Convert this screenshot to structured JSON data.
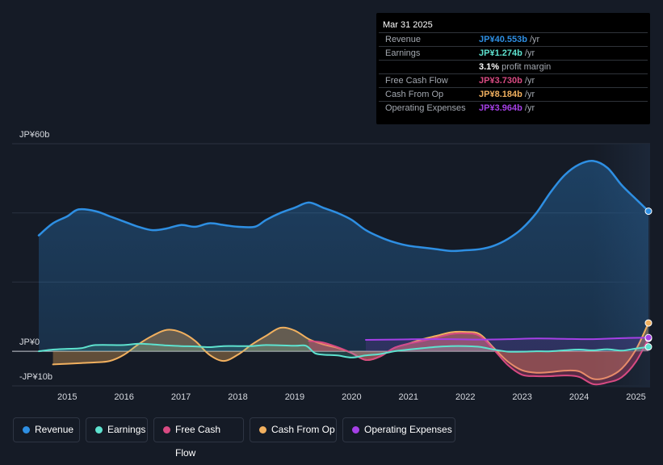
{
  "chart_data": {
    "type": "area",
    "title": "",
    "y_unit_labels": {
      "top": "JP¥60b",
      "zero": "JP¥0",
      "bottom": "-JP¥10b"
    },
    "ylim": [
      -10,
      60
    ],
    "x_ticks": [
      "2015",
      "2016",
      "2017",
      "2018",
      "2019",
      "2020",
      "2021",
      "2022",
      "2023",
      "2024",
      "2025"
    ],
    "series": [
      {
        "name": "Revenue",
        "color": "#2e8fe3",
        "points": [
          [
            2014.5,
            33.5
          ],
          [
            2014.75,
            37
          ],
          [
            2015.0,
            39
          ],
          [
            2015.2,
            41
          ],
          [
            2015.5,
            40.5
          ],
          [
            2015.75,
            39
          ],
          [
            2016.0,
            37.5
          ],
          [
            2016.25,
            36
          ],
          [
            2016.5,
            35
          ],
          [
            2016.75,
            35.5
          ],
          [
            2017.0,
            36.5
          ],
          [
            2017.25,
            36
          ],
          [
            2017.5,
            37
          ],
          [
            2017.75,
            36.5
          ],
          [
            2018.0,
            36
          ],
          [
            2018.3,
            36
          ],
          [
            2018.5,
            38
          ],
          [
            2018.75,
            40
          ],
          [
            2019.0,
            41.5
          ],
          [
            2019.25,
            43
          ],
          [
            2019.5,
            41.5
          ],
          [
            2019.75,
            40
          ],
          [
            2020.0,
            38
          ],
          [
            2020.25,
            35
          ],
          [
            2020.5,
            33
          ],
          [
            2020.75,
            31.5
          ],
          [
            2021.0,
            30.5
          ],
          [
            2021.25,
            30
          ],
          [
            2021.5,
            29.5
          ],
          [
            2021.75,
            29
          ],
          [
            2022.0,
            29.2
          ],
          [
            2022.25,
            29.5
          ],
          [
            2022.5,
            30.5
          ],
          [
            2022.75,
            32.5
          ],
          [
            2023.0,
            35.5
          ],
          [
            2023.25,
            40
          ],
          [
            2023.5,
            46
          ],
          [
            2023.75,
            51
          ],
          [
            2024.0,
            54
          ],
          [
            2024.25,
            55
          ],
          [
            2024.5,
            53
          ],
          [
            2024.75,
            48
          ],
          [
            2025.0,
            44
          ],
          [
            2025.22,
            40.5
          ]
        ]
      },
      {
        "name": "Earnings",
        "color": "#5ee2cf",
        "points": [
          [
            2014.5,
            0
          ],
          [
            2014.75,
            0.5
          ],
          [
            2015.0,
            0.7
          ],
          [
            2015.25,
            0.9
          ],
          [
            2015.5,
            1.8
          ],
          [
            2016.0,
            1.8
          ],
          [
            2016.25,
            2.2
          ],
          [
            2016.5,
            2.0
          ],
          [
            2016.75,
            1.7
          ],
          [
            2017.0,
            1.5
          ],
          [
            2017.25,
            1.4
          ],
          [
            2017.5,
            1.2
          ],
          [
            2017.75,
            1.5
          ],
          [
            2018.0,
            1.5
          ],
          [
            2018.25,
            1.5
          ],
          [
            2018.5,
            1.8
          ],
          [
            2019.0,
            1.6
          ],
          [
            2019.2,
            1.6
          ],
          [
            2019.35,
            -0.5
          ],
          [
            2019.5,
            -1.0
          ],
          [
            2019.75,
            -1.2
          ],
          [
            2020.0,
            -1.8
          ],
          [
            2020.25,
            -1.2
          ],
          [
            2020.5,
            -0.8
          ],
          [
            2020.75,
            0
          ],
          [
            2021.0,
            0.5
          ],
          [
            2021.25,
            0.9
          ],
          [
            2021.5,
            1.3
          ],
          [
            2021.75,
            1.5
          ],
          [
            2022.0,
            1.5
          ],
          [
            2022.25,
            1.3
          ],
          [
            2022.5,
            0.5
          ],
          [
            2022.75,
            -0.1
          ],
          [
            2023.0,
            -0.1
          ],
          [
            2023.25,
            0
          ],
          [
            2023.5,
            0
          ],
          [
            2023.75,
            0.3
          ],
          [
            2024.0,
            0.5
          ],
          [
            2024.25,
            0.3
          ],
          [
            2024.5,
            0.6
          ],
          [
            2024.75,
            0.2
          ],
          [
            2025.0,
            0.8
          ],
          [
            2025.22,
            1.274
          ]
        ]
      },
      {
        "name": "Free Cash Flow",
        "color": "#d84a82",
        "points": [
          [
            2019.25,
            3
          ],
          [
            2019.5,
            2.5
          ],
          [
            2019.75,
            1.2
          ],
          [
            2020.0,
            -0.5
          ],
          [
            2020.25,
            -2.5
          ],
          [
            2020.5,
            -1.5
          ],
          [
            2020.75,
            1.0
          ],
          [
            2021.0,
            2.2
          ],
          [
            2021.25,
            3.0
          ],
          [
            2021.5,
            4.0
          ],
          [
            2021.75,
            5.0
          ],
          [
            2022.0,
            5.2
          ],
          [
            2022.25,
            4.5
          ],
          [
            2022.5,
            0.5
          ],
          [
            2022.75,
            -4.0
          ],
          [
            2023.0,
            -6.8
          ],
          [
            2023.25,
            -7.2
          ],
          [
            2023.5,
            -7.2
          ],
          [
            2023.75,
            -7.0
          ],
          [
            2024.0,
            -7.4
          ],
          [
            2024.25,
            -9.5
          ],
          [
            2024.5,
            -9.0
          ],
          [
            2024.75,
            -7.5
          ],
          [
            2025.0,
            -3.0
          ],
          [
            2025.22,
            3.73
          ]
        ]
      },
      {
        "name": "Cash From Op",
        "color": "#f1b05f",
        "points": [
          [
            2014.75,
            -3.8
          ],
          [
            2015.0,
            -3.6
          ],
          [
            2015.25,
            -3.4
          ],
          [
            2015.5,
            -3.2
          ],
          [
            2015.75,
            -2.8
          ],
          [
            2016.0,
            -1.0
          ],
          [
            2016.25,
            2.0
          ],
          [
            2016.5,
            4.5
          ],
          [
            2016.75,
            6.2
          ],
          [
            2017.0,
            5.5
          ],
          [
            2017.25,
            3.0
          ],
          [
            2017.5,
            -1.0
          ],
          [
            2017.75,
            -2.8
          ],
          [
            2018.0,
            -1.0
          ],
          [
            2018.25,
            2.0
          ],
          [
            2018.5,
            4.5
          ],
          [
            2018.75,
            6.8
          ],
          [
            2019.0,
            6.0
          ],
          [
            2019.25,
            3.5
          ],
          [
            2019.5,
            2.0
          ],
          [
            2019.75,
            1.0
          ],
          [
            2020.0,
            -0.5
          ],
          [
            2020.25,
            -2.5
          ],
          [
            2020.5,
            -1.5
          ],
          [
            2020.75,
            1.0
          ],
          [
            2021.0,
            2.2
          ],
          [
            2021.25,
            3.5
          ],
          [
            2021.5,
            4.5
          ],
          [
            2021.75,
            5.5
          ],
          [
            2022.0,
            5.6
          ],
          [
            2022.25,
            5.0
          ],
          [
            2022.5,
            1.0
          ],
          [
            2022.75,
            -3.0
          ],
          [
            2023.0,
            -5.5
          ],
          [
            2023.25,
            -6.2
          ],
          [
            2023.5,
            -6.0
          ],
          [
            2023.75,
            -5.6
          ],
          [
            2024.0,
            -5.8
          ],
          [
            2024.25,
            -8.0
          ],
          [
            2024.5,
            -7.5
          ],
          [
            2024.75,
            -5.0
          ],
          [
            2025.0,
            0.5
          ],
          [
            2025.22,
            8.184
          ]
        ]
      },
      {
        "name": "Operating Expenses",
        "color": "#a540e6",
        "points": [
          [
            2020.25,
            3.3
          ],
          [
            2020.75,
            3.4
          ],
          [
            2021.25,
            3.5
          ],
          [
            2021.75,
            3.5
          ],
          [
            2022.25,
            3.4
          ],
          [
            2022.75,
            3.5
          ],
          [
            2023.25,
            3.7
          ],
          [
            2023.75,
            3.6
          ],
          [
            2024.25,
            3.5
          ],
          [
            2024.75,
            3.8
          ],
          [
            2025.22,
            3.964
          ]
        ]
      }
    ]
  },
  "tooltip": {
    "date": "Mar 31 2025",
    "rows": [
      {
        "label": "Revenue",
        "value": "JP¥40.553b",
        "unit": " /yr",
        "color": "#2e8fe3"
      },
      {
        "label": "Earnings",
        "value": "JP¥1.274b",
        "unit": " /yr",
        "color": "#5ee2cf"
      },
      {
        "label": "",
        "value": "3.1%",
        "unit": " profit margin",
        "color": "#ffffff"
      },
      {
        "label": "Free Cash Flow",
        "value": "JP¥3.730b",
        "unit": " /yr",
        "color": "#d84a82"
      },
      {
        "label": "Cash From Op",
        "value": "JP¥8.184b",
        "unit": " /yr",
        "color": "#f1b05f"
      },
      {
        "label": "Operating Expenses",
        "value": "JP¥3.964b",
        "unit": " /yr",
        "color": "#a540e6"
      }
    ]
  },
  "legend": [
    {
      "label": "Revenue",
      "color": "#2e8fe3"
    },
    {
      "label": "Earnings",
      "color": "#5ee2cf"
    },
    {
      "label": "Free Cash Flow",
      "color": "#d84a82"
    },
    {
      "label": "Cash From Op",
      "color": "#f1b05f"
    },
    {
      "label": "Operating Expenses",
      "color": "#a540e6"
    }
  ]
}
